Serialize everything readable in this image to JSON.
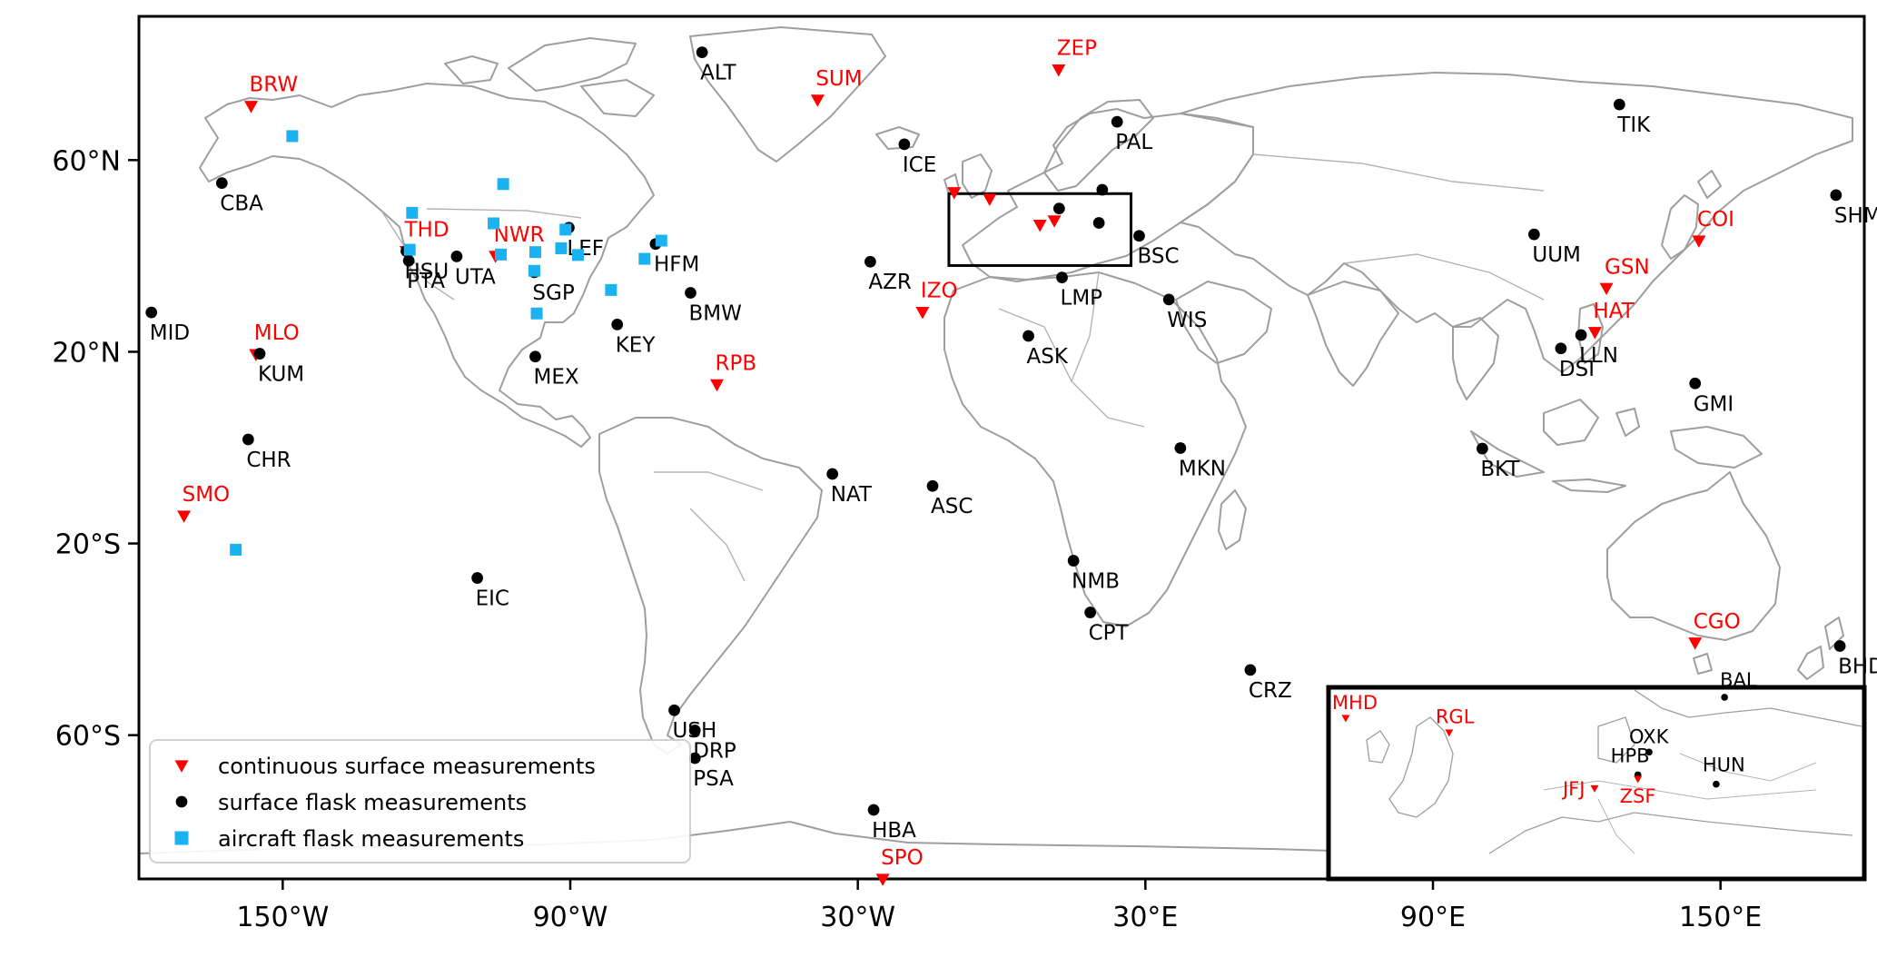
{
  "map": {
    "extent": {
      "lon": [
        -180,
        180
      ],
      "lat": [
        -90,
        90
      ]
    },
    "colors": {
      "continuous": "#ff0000",
      "flask": "#000000",
      "aircraft": "#1ab2f0",
      "coastline": "#9e9e9e"
    },
    "x_ticks": [
      {
        "lon": -150,
        "label": "150°W"
      },
      {
        "lon": -90,
        "label": "90°W"
      },
      {
        "lon": -30,
        "label": "30°W"
      },
      {
        "lon": 30,
        "label": "30°E"
      },
      {
        "lon": 90,
        "label": "90°E"
      },
      {
        "lon": 150,
        "label": "150°E"
      }
    ],
    "y_ticks": [
      {
        "lat": 60,
        "label": "60°N"
      },
      {
        "lat": 20,
        "label": "20°N"
      },
      {
        "lat": -20,
        "label": "20°S"
      },
      {
        "lat": -60,
        "label": "60°S"
      }
    ],
    "legend": {
      "placement": "lower-left",
      "items": [
        {
          "type": "continuous",
          "label": "continuous surface measurements"
        },
        {
          "type": "flask",
          "label": "surface flask measurements"
        },
        {
          "type": "aircraft",
          "label": "aircraft flask measurements"
        }
      ]
    },
    "stations": [
      {
        "code": "BRW",
        "type": "continuous",
        "lon": -156.6,
        "lat": 71.3
      },
      {
        "code": "ZEP",
        "type": "continuous",
        "lon": 11.9,
        "lat": 78.9
      },
      {
        "code": "SUM",
        "type": "continuous",
        "lon": -38.4,
        "lat": 72.6
      },
      {
        "code": "THD",
        "type": "continuous",
        "lon": -124.2,
        "lat": 41.0
      },
      {
        "code": "NWR",
        "type": "continuous",
        "lon": -105.6,
        "lat": 40.0
      },
      {
        "code": "MLO",
        "type": "continuous",
        "lon": -155.6,
        "lat": 19.5
      },
      {
        "code": "RPB",
        "type": "continuous",
        "lon": -59.4,
        "lat": 13.2
      },
      {
        "code": "IZO",
        "type": "continuous",
        "lon": -16.5,
        "lat": 28.3
      },
      {
        "code": "SMO",
        "type": "continuous",
        "lon": -170.6,
        "lat": -14.2
      },
      {
        "code": "SPO",
        "type": "continuous",
        "lon": -24.8,
        "lat": -90.0
      },
      {
        "code": "COI",
        "type": "continuous",
        "lon": 145.5,
        "lat": 43.2
      },
      {
        "code": "GSN",
        "type": "continuous",
        "lon": 126.2,
        "lat": 33.3
      },
      {
        "code": "HAT",
        "type": "continuous",
        "lon": 123.8,
        "lat": 24.1
      },
      {
        "code": "CGO",
        "type": "continuous",
        "lon": 144.7,
        "lat": -40.7
      },
      {
        "code": "",
        "type": "continuous",
        "lon": -9.9,
        "lat": 53.3
      },
      {
        "code": "",
        "type": "continuous",
        "lon": -2.5,
        "lat": 51.9
      },
      {
        "code": "",
        "type": "continuous",
        "lon": 8.0,
        "lat": 46.5
      },
      {
        "code": "",
        "type": "continuous",
        "lon": 11.0,
        "lat": 47.4
      },
      {
        "code": "ALT",
        "type": "flask",
        "lon": -62.5,
        "lat": 82.5
      },
      {
        "code": "TIK",
        "type": "flask",
        "lon": 128.9,
        "lat": 71.6
      },
      {
        "code": "PAL",
        "type": "flask",
        "lon": 24.1,
        "lat": 68.0
      },
      {
        "code": "ICE",
        "type": "flask",
        "lon": -20.3,
        "lat": 63.3
      },
      {
        "code": "CBA",
        "type": "flask",
        "lon": -162.7,
        "lat": 55.2
      },
      {
        "code": "SHM",
        "type": "flask",
        "lon": 174.1,
        "lat": 52.7
      },
      {
        "code": "LEF",
        "type": "flask",
        "lon": -90.3,
        "lat": 45.9
      },
      {
        "code": "HSU",
        "type": "flask",
        "lon": -124.2,
        "lat": 41.0
      },
      {
        "code": "PTA",
        "type": "flask",
        "lon": -123.7,
        "lat": 39.0
      },
      {
        "code": "UTA",
        "type": "flask",
        "lon": -113.7,
        "lat": 39.9
      },
      {
        "code": "SGP",
        "type": "flask",
        "lon": -97.5,
        "lat": 36.6
      },
      {
        "code": "HFM",
        "type": "flask",
        "lon": -72.2,
        "lat": 42.5
      },
      {
        "code": "BMW",
        "type": "flask",
        "lon": -64.9,
        "lat": 32.3
      },
      {
        "code": "KEY",
        "type": "flask",
        "lon": -80.2,
        "lat": 25.7
      },
      {
        "code": "AZR",
        "type": "flask",
        "lon": -27.4,
        "lat": 38.8
      },
      {
        "code": "MID",
        "type": "flask",
        "lon": -177.4,
        "lat": 28.2
      },
      {
        "code": "KUM",
        "type": "flask",
        "lon": -154.8,
        "lat": 19.6
      },
      {
        "code": "MEX",
        "type": "flask",
        "lon": -97.3,
        "lat": 19.0
      },
      {
        "code": "CHR",
        "type": "flask",
        "lon": -157.2,
        "lat": 1.7
      },
      {
        "code": "NAT",
        "type": "flask",
        "lon": -35.3,
        "lat": -5.5
      },
      {
        "code": "ASC",
        "type": "flask",
        "lon": -14.4,
        "lat": -8.0
      },
      {
        "code": "EIC",
        "type": "flask",
        "lon": -109.4,
        "lat": -27.2
      },
      {
        "code": "USH",
        "type": "flask",
        "lon": -68.3,
        "lat": -54.8
      },
      {
        "code": "DRP",
        "type": "flask",
        "lon": -64.0,
        "lat": -59.0
      },
      {
        "code": "PSA",
        "type": "flask",
        "lon": -64.0,
        "lat": -64.8
      },
      {
        "code": "HBA",
        "type": "flask",
        "lon": -26.7,
        "lat": -75.6
      },
      {
        "code": "BSC",
        "type": "flask",
        "lon": 28.7,
        "lat": 44.2
      },
      {
        "code": "LMP",
        "type": "flask",
        "lon": 12.6,
        "lat": 35.5
      },
      {
        "code": "WIS",
        "type": "flask",
        "lon": 34.9,
        "lat": 30.9
      },
      {
        "code": "ASK",
        "type": "flask",
        "lon": 5.6,
        "lat": 23.3
      },
      {
        "code": "MKN",
        "type": "flask",
        "lon": 37.3,
        "lat": -0.1
      },
      {
        "code": "NMB",
        "type": "flask",
        "lon": 15.0,
        "lat": -23.6
      },
      {
        "code": "CPT",
        "type": "flask",
        "lon": 18.5,
        "lat": -34.4
      },
      {
        "code": "CRZ",
        "type": "flask",
        "lon": 51.9,
        "lat": -46.4
      },
      {
        "code": "UUM",
        "type": "flask",
        "lon": 111.1,
        "lat": 44.5
      },
      {
        "code": "DSI",
        "type": "flask",
        "lon": 116.7,
        "lat": 20.7
      },
      {
        "code": "LLN",
        "type": "flask",
        "lon": 120.9,
        "lat": 23.5
      },
      {
        "code": "GMI",
        "type": "flask",
        "lon": 144.7,
        "lat": 13.4
      },
      {
        "code": "BKT",
        "type": "flask",
        "lon": 100.3,
        "lat": -0.2
      },
      {
        "code": "BHD",
        "type": "flask",
        "lon": 174.9,
        "lat": -41.4
      },
      {
        "code": "",
        "type": "flask",
        "lon": 21.0,
        "lat": 53.8
      },
      {
        "code": "",
        "type": "flask",
        "lon": 12.0,
        "lat": 49.9
      },
      {
        "code": "",
        "type": "flask",
        "lon": 20.3,
        "lat": 46.9
      },
      {
        "code": "",
        "type": "aircraft",
        "lon": -148.0,
        "lat": 65.0
      },
      {
        "code": "",
        "type": "aircraft",
        "lon": -104.0,
        "lat": 55.0
      },
      {
        "code": "",
        "type": "aircraft",
        "lon": -123.0,
        "lat": 49.0
      },
      {
        "code": "",
        "type": "aircraft",
        "lon": -123.5,
        "lat": 41.3
      },
      {
        "code": "",
        "type": "aircraft",
        "lon": -104.5,
        "lat": 40.3
      },
      {
        "code": "",
        "type": "aircraft",
        "lon": -106.0,
        "lat": 46.8
      },
      {
        "code": "",
        "type": "aircraft",
        "lon": -97.3,
        "lat": 40.8
      },
      {
        "code": "",
        "type": "aircraft",
        "lon": -91.0,
        "lat": 45.5
      },
      {
        "code": "",
        "type": "aircraft",
        "lon": -91.9,
        "lat": 41.6
      },
      {
        "code": "",
        "type": "aircraft",
        "lon": -88.4,
        "lat": 40.2
      },
      {
        "code": "",
        "type": "aircraft",
        "lon": -97.5,
        "lat": 36.9
      },
      {
        "code": "",
        "type": "aircraft",
        "lon": -71.0,
        "lat": 43.2
      },
      {
        "code": "",
        "type": "aircraft",
        "lon": -74.5,
        "lat": 39.4
      },
      {
        "code": "",
        "type": "aircraft",
        "lon": -81.5,
        "lat": 32.9
      },
      {
        "code": "",
        "type": "aircraft",
        "lon": -97.0,
        "lat": 28.0
      },
      {
        "code": "",
        "type": "aircraft",
        "lon": -159.8,
        "lat": -21.3
      }
    ],
    "europe_box": {
      "lon": [
        -11,
        27
      ],
      "lat": [
        38,
        53
      ]
    },
    "inset": {
      "lon": [
        -11,
        27
      ],
      "lat": [
        38,
        56
      ],
      "stations": [
        {
          "code": "MHD",
          "type": "continuous",
          "lon": -9.9,
          "lat": 53.3
        },
        {
          "code": "RGL",
          "type": "continuous",
          "lon": -2.5,
          "lat": 51.9
        },
        {
          "code": "BAL",
          "type": "flask",
          "lon": 17.2,
          "lat": 55.3
        },
        {
          "code": "OXK",
          "type": "flask",
          "lon": 11.8,
          "lat": 50.0
        },
        {
          "code": "HPB",
          "type": "flask",
          "lon": 11.0,
          "lat": 47.8
        },
        {
          "code": "HUN",
          "type": "flask",
          "lon": 16.6,
          "lat": 46.9
        },
        {
          "code": "JFJ",
          "type": "continuous",
          "lon": 7.9,
          "lat": 46.5
        },
        {
          "code": "ZSF",
          "type": "continuous",
          "lon": 11.0,
          "lat": 47.4
        }
      ]
    }
  }
}
